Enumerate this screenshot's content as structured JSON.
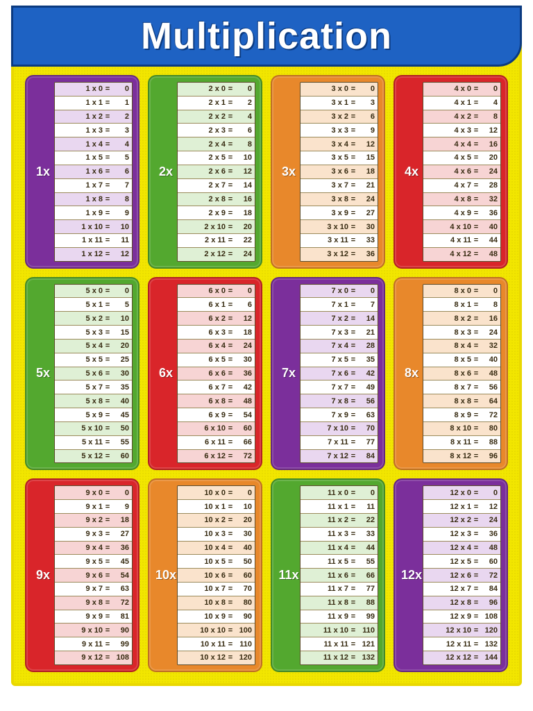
{
  "title": "Multiplication",
  "colors": {
    "purple": "#7b2f9b",
    "green": "#53a82f",
    "orange": "#e8882b",
    "red": "#d9252a",
    "tint_purple": "#e9d7f0",
    "tint_green": "#dff0d5",
    "tint_orange": "#fae3cc",
    "tint_red": "#f7d4d4",
    "row_white": "#ffffff"
  },
  "cards": [
    {
      "n": 1,
      "label": "1x",
      "color": "purple"
    },
    {
      "n": 2,
      "label": "2x",
      "color": "green"
    },
    {
      "n": 3,
      "label": "3x",
      "color": "orange"
    },
    {
      "n": 4,
      "label": "4x",
      "color": "red"
    },
    {
      "n": 5,
      "label": "5x",
      "color": "green"
    },
    {
      "n": 6,
      "label": "6x",
      "color": "red"
    },
    {
      "n": 7,
      "label": "7x",
      "color": "purple"
    },
    {
      "n": 8,
      "label": "8x",
      "color": "orange"
    },
    {
      "n": 9,
      "label": "9x",
      "color": "red"
    },
    {
      "n": 10,
      "label": "10x",
      "color": "orange"
    },
    {
      "n": 11,
      "label": "11x",
      "color": "green"
    },
    {
      "n": 12,
      "label": "12x",
      "color": "purple"
    }
  ],
  "multiplier_range": {
    "start": 0,
    "end": 12
  },
  "typography": {
    "title_fontsize": 54,
    "label_fontsize": 18,
    "row_fontsize": 11
  }
}
